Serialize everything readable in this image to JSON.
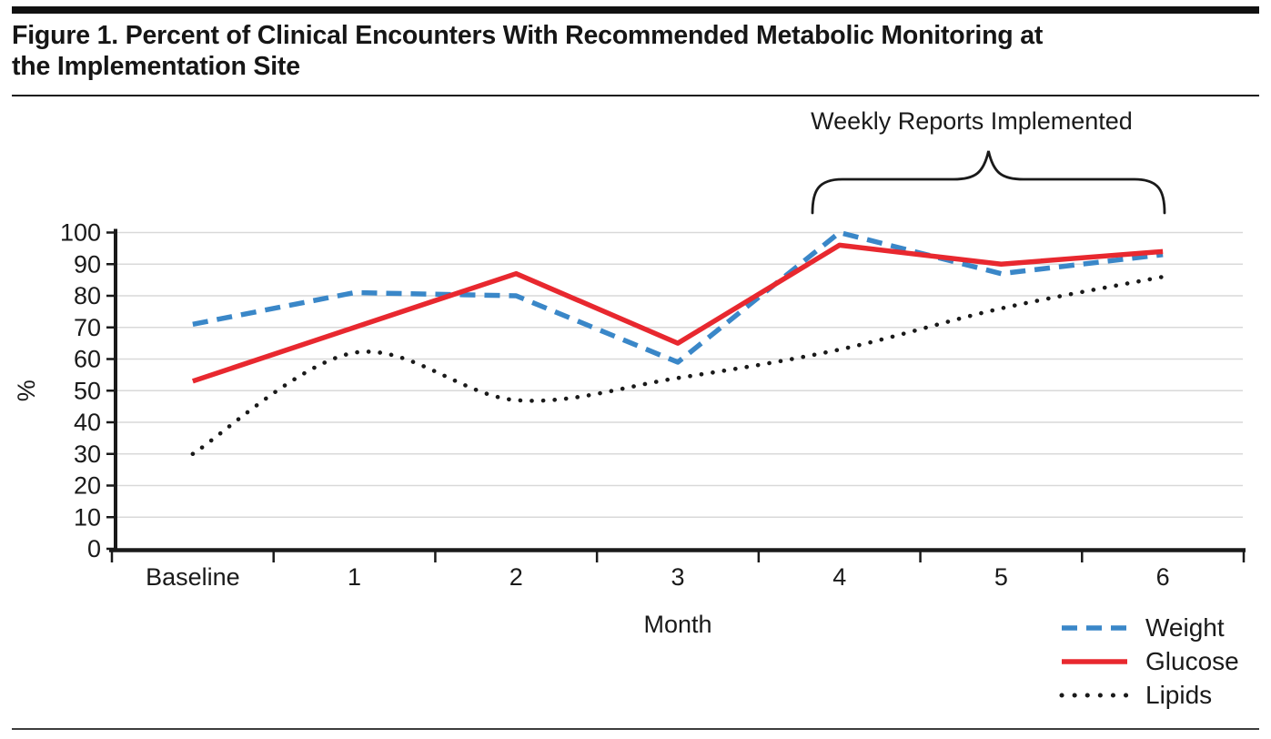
{
  "header": {
    "title_line1": "Figure 1. Percent of Clinical Encounters With Recommended Metabolic Monitoring at",
    "title_line2": "the Implementation Site"
  },
  "chart_data": {
    "type": "line",
    "categories": [
      "Baseline",
      "1",
      "2",
      "3",
      "4",
      "5",
      "6"
    ],
    "series": [
      {
        "name": "Weight",
        "color": "#3a87c8",
        "line_style": "dashed",
        "values": [
          71,
          81,
          80,
          59,
          100,
          87,
          93
        ]
      },
      {
        "name": "Glucose",
        "color": "#e8282f",
        "line_style": "solid",
        "values": [
          53,
          70,
          87,
          65,
          96,
          90,
          94
        ]
      },
      {
        "name": "Lipids",
        "color": "#1a1a1a",
        "line_style": "dotted",
        "values": [
          30,
          62,
          47,
          54,
          63,
          76,
          86
        ]
      }
    ],
    "xlabel": "Month",
    "ylabel": "%",
    "ylim": [
      0,
      100
    ],
    "yticks": [
      0,
      10,
      20,
      30,
      40,
      50,
      60,
      70,
      80,
      90,
      100
    ],
    "grid": "horizontal",
    "gridline_color": "#d9d9d9",
    "legend_position": "bottom-right",
    "annotation": {
      "label": "Weekly Reports Implemented",
      "span_categories": [
        "4",
        "6"
      ]
    }
  }
}
